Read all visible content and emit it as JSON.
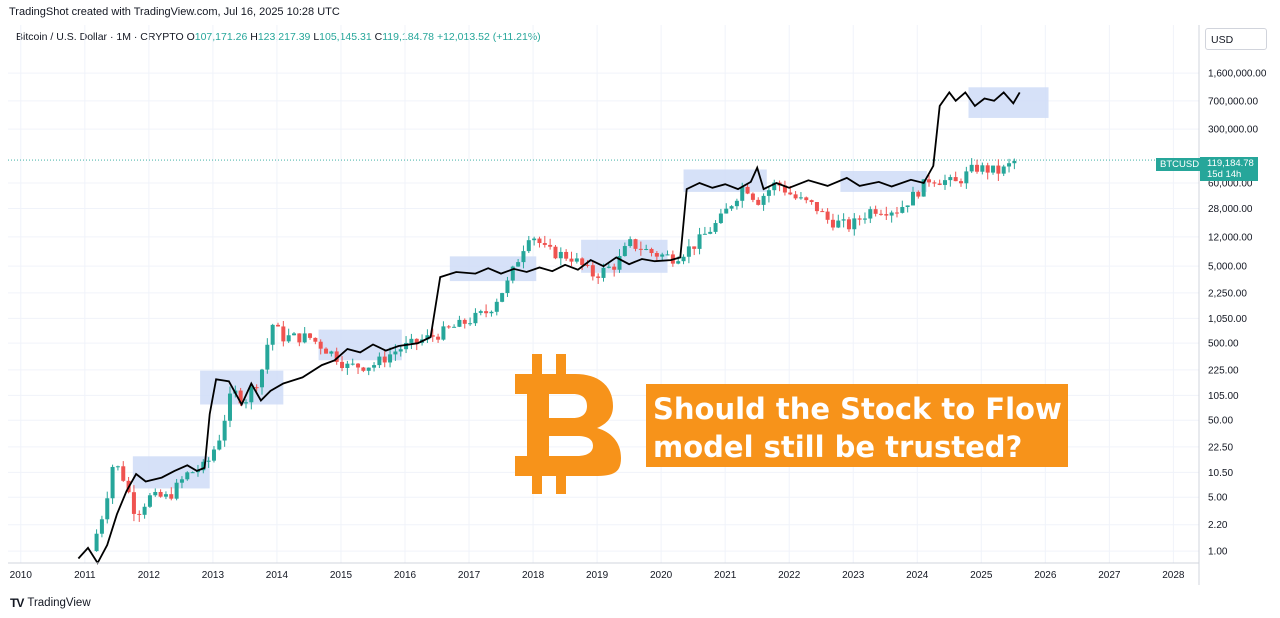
{
  "header": {
    "caption": "TradingShot created with TradingView.com, Jul 16, 2025 10:28 UTC",
    "symbol_line": "Bitcoin / U.S. Dollar · 1M · CRYPTO",
    "ohlc": {
      "o_label": "O",
      "o": "107,171.26",
      "h_label": "H",
      "h": "123,217.39",
      "l_label": "L",
      "l": "105,145.31",
      "c_label": "C",
      "c": "119,184.78",
      "change": "+12,013.52 (+11.21%)"
    },
    "currency": "USD"
  },
  "price_badge": {
    "symbol": "BTCUSD",
    "price": "119,184.78",
    "countdown": "15d 14h"
  },
  "headline": {
    "line1": "Should the Stock to Flow",
    "line2": "model still be trusted?"
  },
  "footer": {
    "logo": "TV",
    "brand": "TradingView"
  },
  "colors": {
    "up": "#26a69a",
    "down": "#ef5350",
    "model": "#000000",
    "box": "#cfdcf7",
    "accent": "#f7931a"
  },
  "chart_data": {
    "type": "candlestick",
    "y_scale": "log",
    "ylim": [
      0.7,
      3200000
    ],
    "xlim": [
      2009.8,
      2028.4
    ],
    "y_ticks": [
      {
        "v": 1600000,
        "label": "1,600,000.00"
      },
      {
        "v": 700000,
        "label": "700,000.00"
      },
      {
        "v": 300000,
        "label": "300,000.00"
      },
      {
        "v": 60000,
        "label": "60,000.00"
      },
      {
        "v": 28000,
        "label": "28,000.00"
      },
      {
        "v": 12000,
        "label": "12,000.00"
      },
      {
        "v": 5000,
        "label": "5,000.00"
      },
      {
        "v": 2250,
        "label": "2,250.00"
      },
      {
        "v": 1050,
        "label": "1,050.00"
      },
      {
        "v": 500,
        "label": "500.00"
      },
      {
        "v": 225,
        "label": "225.00"
      },
      {
        "v": 105,
        "label": "105.00"
      },
      {
        "v": 50,
        "label": "50.00"
      },
      {
        "v": 22.5,
        "label": "22.50"
      },
      {
        "v": 10.5,
        "label": "10.50"
      },
      {
        "v": 5,
        "label": "5.00"
      },
      {
        "v": 2.2,
        "label": "2.20"
      },
      {
        "v": 1,
        "label": "1.00"
      }
    ],
    "x_ticks": [
      "2010",
      "2011",
      "2012",
      "2013",
      "2014",
      "2015",
      "2016",
      "2017",
      "2018",
      "2019",
      "2020",
      "2021",
      "2022",
      "2023",
      "2024",
      "2025",
      "2026",
      "2027",
      "2028"
    ],
    "last_price": 119184.78,
    "price_series": [
      {
        "t": 2011.1,
        "v": 1
      },
      {
        "t": 2011.3,
        "v": 3.5
      },
      {
        "t": 2011.45,
        "v": 15
      },
      {
        "t": 2011.6,
        "v": 9
      },
      {
        "t": 2011.8,
        "v": 3
      },
      {
        "t": 2012.0,
        "v": 5
      },
      {
        "t": 2012.3,
        "v": 5
      },
      {
        "t": 2012.6,
        "v": 10
      },
      {
        "t": 2012.9,
        "v": 13
      },
      {
        "t": 2013.1,
        "v": 30
      },
      {
        "t": 2013.3,
        "v": 120
      },
      {
        "t": 2013.5,
        "v": 90
      },
      {
        "t": 2013.75,
        "v": 200
      },
      {
        "t": 2013.92,
        "v": 900
      },
      {
        "t": 2014.1,
        "v": 600
      },
      {
        "t": 2014.5,
        "v": 600
      },
      {
        "t": 2014.9,
        "v": 350
      },
      {
        "t": 2015.1,
        "v": 250
      },
      {
        "t": 2015.5,
        "v": 260
      },
      {
        "t": 2015.9,
        "v": 420
      },
      {
        "t": 2016.5,
        "v": 650
      },
      {
        "t": 2016.9,
        "v": 900
      },
      {
        "t": 2017.3,
        "v": 1300
      },
      {
        "t": 2017.6,
        "v": 3000
      },
      {
        "t": 2017.95,
        "v": 14000
      },
      {
        "t": 2018.2,
        "v": 8000
      },
      {
        "t": 2018.6,
        "v": 6500
      },
      {
        "t": 2018.95,
        "v": 3800
      },
      {
        "t": 2019.3,
        "v": 5300
      },
      {
        "t": 2019.5,
        "v": 10000
      },
      {
        "t": 2019.9,
        "v": 7200
      },
      {
        "t": 2020.2,
        "v": 6500
      },
      {
        "t": 2020.5,
        "v": 9200
      },
      {
        "t": 2020.9,
        "v": 19000
      },
      {
        "t": 2021.1,
        "v": 33000
      },
      {
        "t": 2021.3,
        "v": 58000
      },
      {
        "t": 2021.5,
        "v": 35000
      },
      {
        "t": 2021.8,
        "v": 61000
      },
      {
        "t": 2022.1,
        "v": 38000
      },
      {
        "t": 2022.4,
        "v": 30000
      },
      {
        "t": 2022.6,
        "v": 20000
      },
      {
        "t": 2022.95,
        "v": 16500
      },
      {
        "t": 2023.3,
        "v": 28000
      },
      {
        "t": 2023.7,
        "v": 27000
      },
      {
        "t": 2023.95,
        "v": 42000
      },
      {
        "t": 2024.2,
        "v": 70000
      },
      {
        "t": 2024.6,
        "v": 60000
      },
      {
        "t": 2024.9,
        "v": 96000
      },
      {
        "t": 2025.3,
        "v": 84000
      },
      {
        "t": 2025.55,
        "v": 119184
      }
    ],
    "model_series": [
      {
        "t": 2010.9,
        "v": 0.8
      },
      {
        "t": 2011.05,
        "v": 1.1
      },
      {
        "t": 2011.2,
        "v": 0.7
      },
      {
        "t": 2011.35,
        "v": 1.2
      },
      {
        "t": 2011.5,
        "v": 3
      },
      {
        "t": 2011.65,
        "v": 6
      },
      {
        "t": 2011.8,
        "v": 10
      },
      {
        "t": 2011.95,
        "v": 8
      },
      {
        "t": 2012.2,
        "v": 9
      },
      {
        "t": 2012.4,
        "v": 11
      },
      {
        "t": 2012.6,
        "v": 13
      },
      {
        "t": 2012.75,
        "v": 11
      },
      {
        "t": 2012.87,
        "v": 12
      },
      {
        "t": 2012.95,
        "v": 60
      },
      {
        "t": 2013.05,
        "v": 170
      },
      {
        "t": 2013.25,
        "v": 160
      },
      {
        "t": 2013.45,
        "v": 80
      },
      {
        "t": 2013.6,
        "v": 150
      },
      {
        "t": 2013.75,
        "v": 90
      },
      {
        "t": 2013.9,
        "v": 120
      },
      {
        "t": 2014.1,
        "v": 150
      },
      {
        "t": 2014.4,
        "v": 180
      },
      {
        "t": 2014.7,
        "v": 260
      },
      {
        "t": 2014.9,
        "v": 300
      },
      {
        "t": 2015.1,
        "v": 420
      },
      {
        "t": 2015.3,
        "v": 380
      },
      {
        "t": 2015.5,
        "v": 480
      },
      {
        "t": 2015.7,
        "v": 400
      },
      {
        "t": 2015.9,
        "v": 460
      },
      {
        "t": 2016.2,
        "v": 500
      },
      {
        "t": 2016.4,
        "v": 600
      },
      {
        "t": 2016.55,
        "v": 3600
      },
      {
        "t": 2016.8,
        "v": 4200
      },
      {
        "t": 2017.1,
        "v": 4000
      },
      {
        "t": 2017.3,
        "v": 4700
      },
      {
        "t": 2017.5,
        "v": 4000
      },
      {
        "t": 2017.7,
        "v": 4600
      },
      {
        "t": 2017.9,
        "v": 4200
      },
      {
        "t": 2018.1,
        "v": 4800
      },
      {
        "t": 2018.3,
        "v": 4300
      },
      {
        "t": 2018.5,
        "v": 5200
      },
      {
        "t": 2018.7,
        "v": 4500
      },
      {
        "t": 2018.9,
        "v": 6000
      },
      {
        "t": 2019.1,
        "v": 5000
      },
      {
        "t": 2019.3,
        "v": 6500
      },
      {
        "t": 2019.5,
        "v": 5300
      },
      {
        "t": 2019.7,
        "v": 6200
      },
      {
        "t": 2019.9,
        "v": 5800
      },
      {
        "t": 2020.15,
        "v": 6000
      },
      {
        "t": 2020.3,
        "v": 6500
      },
      {
        "t": 2020.4,
        "v": 50000
      },
      {
        "t": 2020.6,
        "v": 60000
      },
      {
        "t": 2020.8,
        "v": 52000
      },
      {
        "t": 2021.0,
        "v": 58000
      },
      {
        "t": 2021.2,
        "v": 50000
      },
      {
        "t": 2021.4,
        "v": 62000
      },
      {
        "t": 2021.5,
        "v": 95000
      },
      {
        "t": 2021.6,
        "v": 50000
      },
      {
        "t": 2021.8,
        "v": 60000
      },
      {
        "t": 2022.0,
        "v": 52000
      },
      {
        "t": 2022.3,
        "v": 65000
      },
      {
        "t": 2022.6,
        "v": 55000
      },
      {
        "t": 2022.9,
        "v": 70000
      },
      {
        "t": 2023.1,
        "v": 55000
      },
      {
        "t": 2023.4,
        "v": 62000
      },
      {
        "t": 2023.6,
        "v": 54000
      },
      {
        "t": 2023.9,
        "v": 66000
      },
      {
        "t": 2024.1,
        "v": 60000
      },
      {
        "t": 2024.25,
        "v": 100000
      },
      {
        "t": 2024.35,
        "v": 600000
      },
      {
        "t": 2024.5,
        "v": 900000
      },
      {
        "t": 2024.6,
        "v": 700000
      },
      {
        "t": 2024.75,
        "v": 900000
      },
      {
        "t": 2024.9,
        "v": 600000
      },
      {
        "t": 2025.05,
        "v": 750000
      },
      {
        "t": 2025.2,
        "v": 700000
      },
      {
        "t": 2025.35,
        "v": 900000
      },
      {
        "t": 2025.5,
        "v": 650000
      },
      {
        "t": 2025.6,
        "v": 900000
      }
    ],
    "range_boxes": [
      {
        "t0": 2011.75,
        "t1": 2012.95,
        "v0": 6.5,
        "v1": 17
      },
      {
        "t0": 2012.8,
        "t1": 2014.1,
        "v0": 80,
        "v1": 220
      },
      {
        "t0": 2014.65,
        "t1": 2015.95,
        "v0": 300,
        "v1": 750
      },
      {
        "t0": 2016.7,
        "t1": 2018.05,
        "v0": 3200,
        "v1": 6700
      },
      {
        "t0": 2018.75,
        "t1": 2020.1,
        "v0": 4100,
        "v1": 11000
      },
      {
        "t0": 2020.35,
        "t1": 2021.65,
        "v0": 46000,
        "v1": 90000
      },
      {
        "t0": 2022.8,
        "t1": 2024.15,
        "v0": 46000,
        "v1": 86000
      },
      {
        "t0": 2024.8,
        "t1": 2026.05,
        "v0": 420000,
        "v1": 1050000
      }
    ]
  }
}
